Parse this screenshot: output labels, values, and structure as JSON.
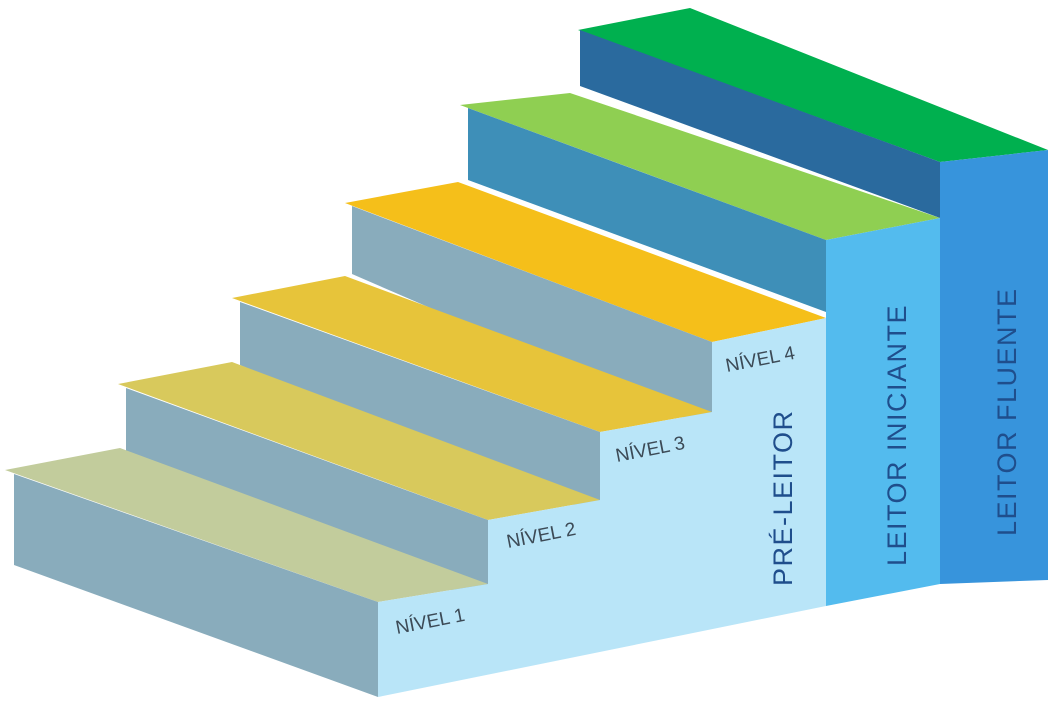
{
  "colors": {
    "step1_top": "#c2cc9c",
    "step2_top": "#d8c95c",
    "step3_top": "#e7c43a",
    "step4_top": "#f5bf1a",
    "step5_top": "#8fcf52",
    "step6_top": "#00b04f",
    "riser": "#89acbc",
    "riser5": "#3e8fb8",
    "riser6": "#2a6a9e",
    "pre_leitor_face": "#b9e5f8",
    "iniciante_face": "#53bbee",
    "fluente_face": "#3794dc",
    "label_text": "#1f4e8c"
  },
  "levels": [
    "NÍVEL 1",
    "NÍVEL 2",
    "NÍVEL 3",
    "NÍVEL 4"
  ],
  "stages": {
    "pre_leitor": "PRÉ-LEITOR",
    "iniciante": "LEITOR INICIANTE",
    "fluente": "LEITOR FLUENTE"
  }
}
